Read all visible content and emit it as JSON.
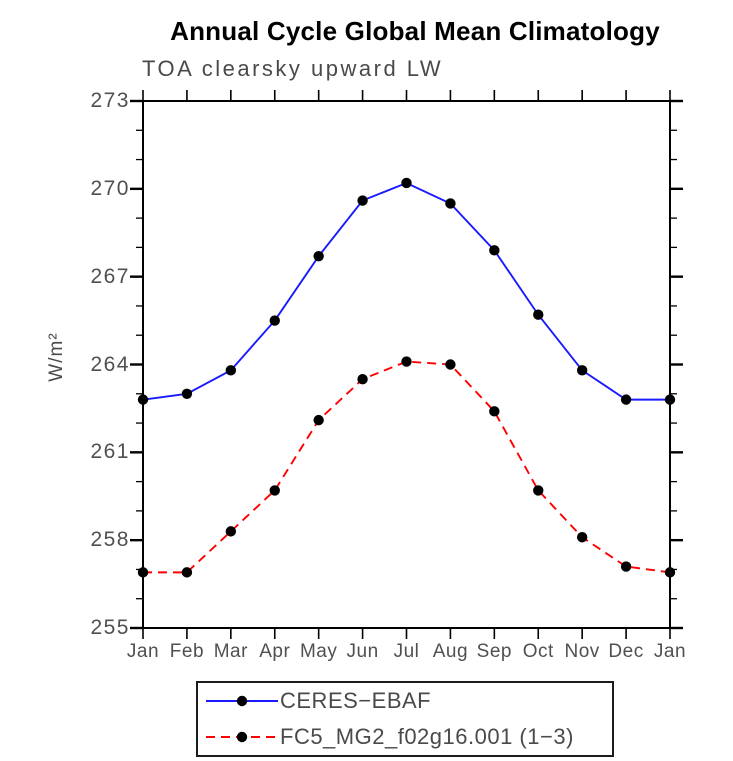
{
  "chart_data": {
    "type": "line",
    "title": "Annual Cycle Global Mean Climatology",
    "subtitle": "TOA clearsky upward LW",
    "ylabel": "W/m²",
    "xlabel": "",
    "categories": [
      "Jan",
      "Feb",
      "Mar",
      "Apr",
      "May",
      "Jun",
      "Jul",
      "Aug",
      "Sep",
      "Oct",
      "Nov",
      "Dec",
      "Jan"
    ],
    "ylim": [
      255,
      273
    ],
    "ytick_major_step": 3,
    "ytick_minor_step": 1,
    "ytick_labels": [
      "255",
      "258",
      "261",
      "264",
      "267",
      "270",
      "273"
    ],
    "grid": false,
    "legend_position": "bottom-left-box",
    "marker": "filled-black-circle",
    "marker_color": "#000000",
    "axis_color": "#000000",
    "text_color": "#4a4a4a",
    "series": [
      {
        "name": "CERES−EBAF",
        "color": "#1a1aff",
        "style": "solid",
        "values": [
          262.8,
          263.0,
          263.8,
          265.5,
          267.7,
          269.6,
          270.2,
          269.5,
          267.9,
          265.7,
          263.8,
          262.8,
          262.8
        ]
      },
      {
        "name": "FC5_MG2_f02g16.001 (1−3)",
        "color": "#ff0000",
        "style": "dashed",
        "values": [
          256.9,
          256.9,
          258.3,
          259.7,
          262.1,
          263.5,
          264.1,
          264.0,
          262.4,
          259.7,
          258.1,
          257.1,
          256.9
        ]
      }
    ]
  }
}
